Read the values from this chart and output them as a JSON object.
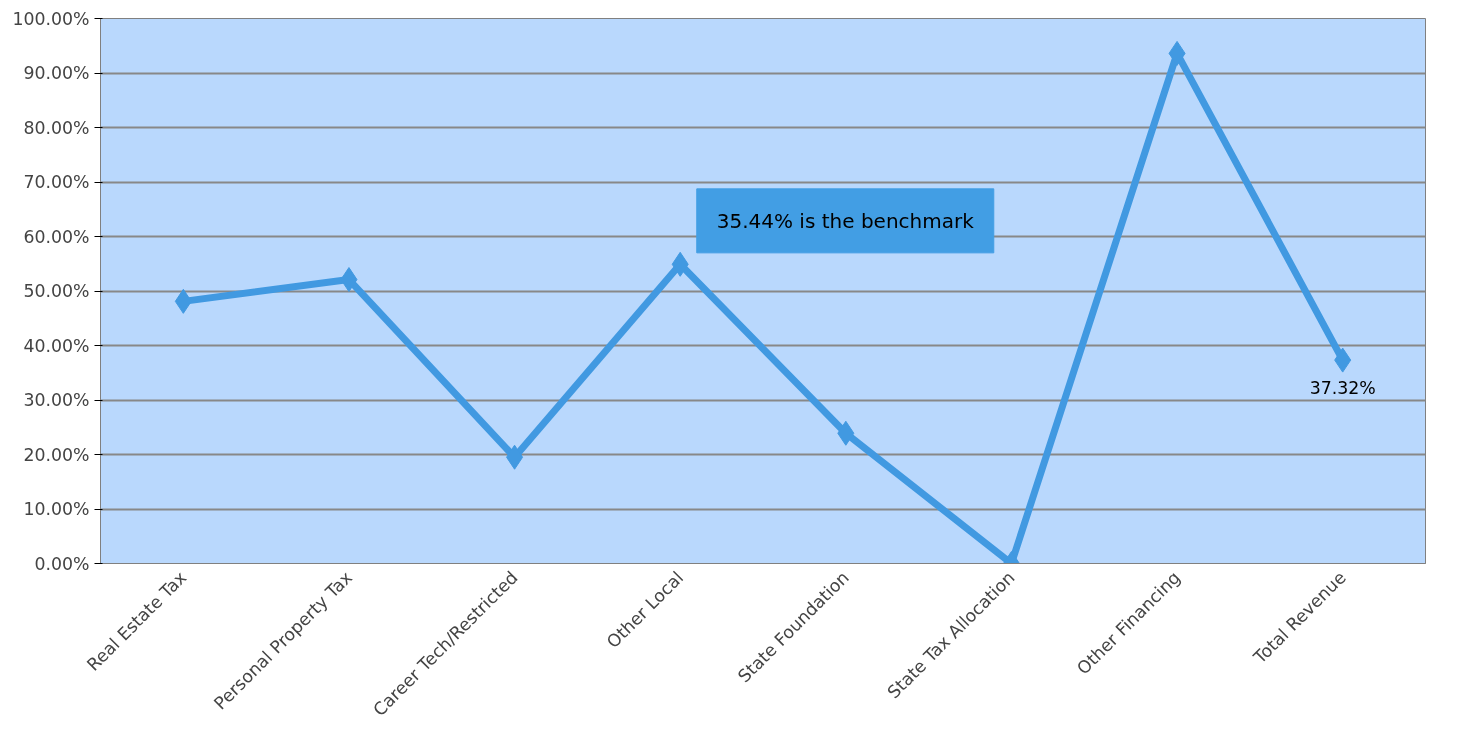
{
  "chart_data": {
    "type": "line",
    "categories": [
      "Real Estate Tax",
      "Personal Property Tax",
      "Career Tech/Restricted",
      "Other Local",
      "State Foundation",
      "State Tax Allocation",
      "Other Financing",
      "Total Revenue"
    ],
    "series": [
      {
        "color": "#4199e1",
        "values": [
          48.1,
          52.1,
          19.5,
          54.9,
          23.9,
          0,
          93.6,
          37.32
        ],
        "value_labels": [
          null,
          null,
          null,
          null,
          null,
          null,
          null,
          "37.32%"
        ]
      }
    ],
    "ylim": [
      0,
      100
    ],
    "yticks": [
      {
        "value": 0,
        "label": "0.00%"
      },
      {
        "value": 10,
        "label": "10.00%"
      },
      {
        "value": 20,
        "label": "20.00%"
      },
      {
        "value": 30,
        "label": "30.00%"
      },
      {
        "value": 40,
        "label": "40.00%"
      },
      {
        "value": 50,
        "label": "50.00%"
      },
      {
        "value": 60,
        "label": "60.00%"
      },
      {
        "value": 70,
        "label": "70.00%"
      },
      {
        "value": 80,
        "label": "80.00%"
      },
      {
        "value": 90,
        "label": "90.00%"
      },
      {
        "value": 100,
        "label": "100.00%"
      }
    ],
    "annotations": [
      "35.44% is the benchmark"
    ],
    "grid": "y",
    "marker": "diamond",
    "line_style": "solid"
  }
}
